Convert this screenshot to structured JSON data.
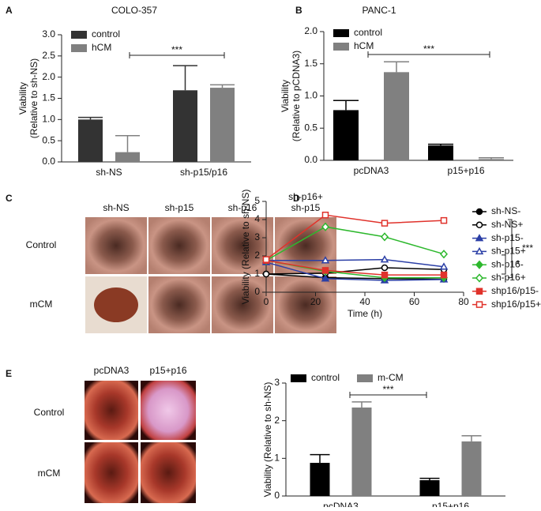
{
  "panels": [
    "A",
    "B",
    "C",
    "D",
    "E"
  ],
  "image_panel_c": {
    "columns": [
      [
        "sh-NS"
      ],
      [
        "sh-p15"
      ],
      [
        "sh-p16"
      ],
      [
        "sh-p16+",
        "sh-p15"
      ]
    ],
    "rows": [
      "Control",
      "mCM"
    ]
  },
  "image_panel_e": {
    "columns": [
      [
        "pcDNA3"
      ],
      [
        "p15+p16"
      ]
    ],
    "rows": [
      "Control",
      "mCM"
    ]
  },
  "chart_data": [
    {
      "type": "bar",
      "title": "COLO-357",
      "y_label": [
        "Viability",
        "(Relative to sh-NS)"
      ],
      "categories": [
        "sh-NS",
        "sh-p15/p16"
      ],
      "series": [
        {
          "name": "control",
          "color": "#333333",
          "values": [
            1.0,
            1.69
          ],
          "errors": [
            0.05,
            0.58
          ]
        },
        {
          "name": "hCM",
          "color": "#808080",
          "values": [
            0.23,
            1.75
          ],
          "errors": [
            0.39,
            0.07
          ]
        }
      ],
      "ylim": [
        0,
        3
      ],
      "yticks": [
        {
          "value": 0,
          "label": "0.0"
        },
        {
          "value": 0.5,
          "label": "0.5"
        },
        {
          "value": 1,
          "label": "1.0"
        },
        {
          "value": 1.5,
          "label": "1.5"
        },
        {
          "value": 2,
          "label": "2.0"
        },
        {
          "value": 2.5,
          "label": "2.5"
        },
        {
          "value": 3,
          "label": "3.0"
        }
      ],
      "annotations": [
        "***"
      ]
    },
    {
      "type": "bar",
      "title": "PANC-1",
      "y_label": [
        "Viability",
        "(Relative to pCDNA3)"
      ],
      "categories": [
        "pcDNA3",
        "p15+p16"
      ],
      "series": [
        {
          "name": "control",
          "color": "#000000",
          "values": [
            0.78,
            0.23
          ],
          "errors": [
            0.15,
            0.02
          ]
        },
        {
          "name": "hCM",
          "color": "#808080",
          "values": [
            1.37,
            0.02
          ],
          "errors": [
            0.16,
            0.02
          ]
        }
      ],
      "ylim": [
        0,
        2
      ],
      "yticks": [
        {
          "value": 0,
          "label": "0.0"
        },
        {
          "value": 0.5,
          "label": "0.5"
        },
        {
          "value": 1,
          "label": "1.0"
        },
        {
          "value": 1.5,
          "label": "1.5"
        },
        {
          "value": 2,
          "label": "2.0"
        }
      ],
      "annotations": [
        "***"
      ]
    },
    {
      "type": "line",
      "x_label": "Time (h)",
      "y_label": [
        "Viability (Relative to sh-NS)"
      ],
      "x": [
        0,
        24,
        48,
        72
      ],
      "series": [
        {
          "name": "sh-NS-",
          "color": "#000000",
          "marker": "circle",
          "filled": true,
          "values": [
            1.0,
            0.8,
            0.75,
            0.72
          ]
        },
        {
          "name": "sh-NS+",
          "color": "#000000",
          "marker": "circle",
          "filled": false,
          "values": [
            1.0,
            1.05,
            1.35,
            1.25
          ]
        },
        {
          "name": "sh-p15-",
          "color": "#2b3fa6",
          "marker": "triangle",
          "filled": true,
          "values": [
            1.65,
            0.75,
            0.65,
            0.7
          ]
        },
        {
          "name": "sh-p15+",
          "color": "#2b3fa6",
          "marker": "triangle",
          "filled": false,
          "values": [
            1.75,
            1.75,
            1.8,
            1.4
          ]
        },
        {
          "name": "sh-p16-",
          "color": "#2db82d",
          "marker": "diamond",
          "filled": true,
          "values": [
            1.75,
            1.15,
            0.8,
            0.8
          ]
        },
        {
          "name": "sh-p16+",
          "color": "#2db82d",
          "marker": "diamond",
          "filled": false,
          "values": [
            1.75,
            3.6,
            3.05,
            2.1
          ]
        },
        {
          "name": "shp16/p15-",
          "color": "#e0322b",
          "marker": "square",
          "filled": true,
          "values": [
            1.75,
            1.2,
            0.95,
            0.95
          ]
        },
        {
          "name": "shp16/p15+",
          "color": "#e0322b",
          "marker": "square",
          "filled": false,
          "values": [
            1.8,
            4.25,
            3.8,
            3.95
          ]
        }
      ],
      "xlim": [
        0,
        80
      ],
      "xticks": [
        0,
        20,
        40,
        60,
        80
      ],
      "ylim": [
        0,
        5
      ],
      "yticks": [
        0,
        1,
        2,
        3,
        4,
        5
      ],
      "annotations": [
        "***",
        "*"
      ]
    },
    {
      "type": "bar",
      "y_label": [
        "Viability (Relative to sh-NS)"
      ],
      "categories": [
        "pcDNA3",
        "p15+p16"
      ],
      "series": [
        {
          "name": "control",
          "color": "#000000",
          "values": [
            0.88,
            0.42
          ],
          "errors": [
            0.22,
            0.05
          ]
        },
        {
          "name": "m-CM",
          "color": "#808080",
          "values": [
            2.35,
            1.45
          ],
          "errors": [
            0.15,
            0.15
          ]
        }
      ],
      "ylim": [
        0,
        3
      ],
      "yticks": [
        0,
        1,
        2,
        3
      ],
      "annotations": [
        "***"
      ]
    }
  ]
}
